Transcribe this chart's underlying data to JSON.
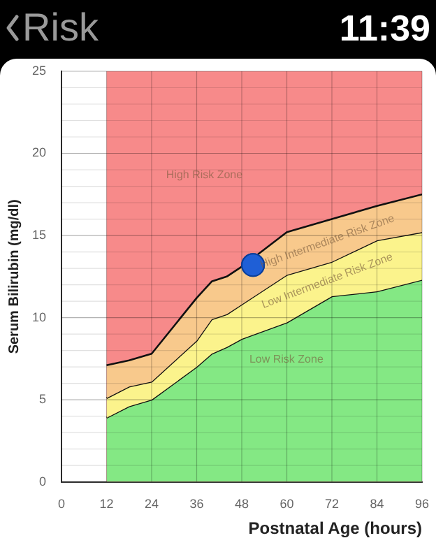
{
  "chart_data": {
    "type": "area",
    "title": "Risk",
    "xlabel": "Postnatal Age (hours)",
    "ylabel": "Serum Bilirubin (mg/dl)",
    "annotations": [
      "11:39"
    ],
    "xlim": [
      0,
      96
    ],
    "xticks": [
      0,
      12,
      24,
      36,
      48,
      60,
      72,
      84,
      96
    ],
    "ylim": [
      0,
      25
    ],
    "yticks": [
      0,
      {
        "value": 1,
        "label": null
      },
      {
        "value": 2,
        "label": null
      },
      {
        "value": 3,
        "label": null
      },
      {
        "value": 4,
        "label": null
      },
      5,
      {
        "value": 6,
        "label": null
      },
      {
        "value": 7,
        "label": null
      },
      {
        "value": 8,
        "label": null
      },
      {
        "value": 9,
        "label": null
      },
      10,
      {
        "value": 11,
        "label": null
      },
      {
        "value": 12,
        "label": null
      },
      {
        "value": 13,
        "label": null
      },
      {
        "value": 14,
        "label": null
      },
      15,
      {
        "value": 16,
        "label": null
      },
      {
        "value": 17,
        "label": null
      },
      {
        "value": 18,
        "label": null
      },
      {
        "value": 19,
        "label": null
      },
      20,
      {
        "value": 21,
        "label": null
      },
      {
        "value": 22,
        "label": null
      },
      {
        "value": 23,
        "label": null
      },
      {
        "value": 24,
        "label": null
      },
      25
    ],
    "grid": true,
    "legend": false,
    "bands": [
      {
        "axis": "x",
        "from": 12,
        "to": 96,
        "color": "#f78a8a",
        "label": "High Risk Zone"
      }
    ],
    "x": [
      12,
      18,
      24,
      36,
      40,
      44,
      48,
      60,
      72,
      84,
      96
    ],
    "series": [
      {
        "name": "Low Risk Zone",
        "color": "#84e884",
        "values": [
          3.9,
          4.6,
          5.0,
          7.0,
          7.8,
          8.2,
          8.7,
          9.7,
          11.3,
          11.6,
          12.3
        ]
      },
      {
        "name": "Low Intermediate Risk Zone",
        "color": "#fbf38c",
        "values": [
          5.1,
          5.8,
          6.1,
          8.6,
          9.9,
          10.2,
          10.8,
          12.6,
          13.4,
          14.7,
          15.2
        ]
      },
      {
        "name": "High Intermediate Risk Zone",
        "color": "#f8c98c",
        "values": [
          7.1,
          7.4,
          7.8,
          11.2,
          12.2,
          12.5,
          13.1,
          15.2,
          16.0,
          16.8,
          17.5
        ]
      },
      {
        "type": "scatter",
        "color": "#1f5fd6",
        "x": [
          51
        ],
        "values": [
          13.2
        ],
        "marker": "circle"
      }
    ]
  }
}
